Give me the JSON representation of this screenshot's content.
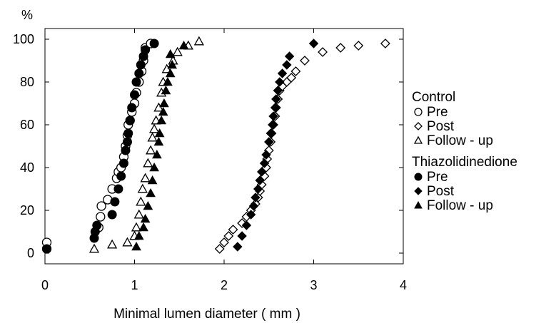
{
  "chart_data": {
    "type": "scatter",
    "title": "",
    "xlabel": "Minimal lumen diameter ( mm )",
    "ylabel": "%",
    "xlim": [
      0,
      4
    ],
    "ylim": [
      -5,
      105
    ],
    "x_ticks": [
      0,
      1,
      2,
      3,
      4
    ],
    "x_tick_labels": [
      "0",
      "1",
      "2",
      "3",
      "4"
    ],
    "y_ticks": [
      0,
      20,
      40,
      60,
      80,
      100
    ],
    "y_tick_labels": [
      "0",
      "20",
      "40",
      "60",
      "80",
      "100"
    ],
    "grid": false,
    "legend_position": "right",
    "legend_groups": [
      {
        "title": "Control",
        "entries": [
          {
            "label": "Pre",
            "marker": "circle-open"
          },
          {
            "label": "Post",
            "marker": "diamond-open"
          },
          {
            "label": "Follow - up",
            "marker": "triangle-open"
          }
        ]
      },
      {
        "title": "Thiazolidinedione",
        "entries": [
          {
            "label": "Pre",
            "marker": "circle-filled"
          },
          {
            "label": "Post",
            "marker": "diamond-filled"
          },
          {
            "label": "Follow - up",
            "marker": "triangle-filled"
          }
        ]
      }
    ],
    "series": [
      {
        "group": "Control",
        "name": "Pre",
        "marker": "circle-open",
        "points": [
          [
            0.02,
            2
          ],
          [
            0.02,
            5
          ],
          [
            0.6,
            12
          ],
          [
            0.62,
            17
          ],
          [
            0.63,
            22
          ],
          [
            0.7,
            25
          ],
          [
            0.75,
            30
          ],
          [
            0.8,
            35
          ],
          [
            0.82,
            38
          ],
          [
            0.85,
            40
          ],
          [
            0.88,
            45
          ],
          [
            0.9,
            50
          ],
          [
            0.92,
            55
          ],
          [
            0.93,
            60
          ],
          [
            0.95,
            62
          ],
          [
            0.97,
            66
          ],
          [
            1.0,
            70
          ],
          [
            1.02,
            75
          ],
          [
            1.05,
            80
          ],
          [
            1.08,
            85
          ],
          [
            1.1,
            90
          ],
          [
            1.12,
            96
          ],
          [
            1.18,
            98
          ]
        ]
      },
      {
        "group": "Control",
        "name": "Post",
        "marker": "diamond-open",
        "points": [
          [
            1.95,
            2
          ],
          [
            2.0,
            5
          ],
          [
            2.05,
            8
          ],
          [
            2.1,
            11
          ],
          [
            2.2,
            14
          ],
          [
            2.25,
            17
          ],
          [
            2.3,
            20
          ],
          [
            2.35,
            23
          ],
          [
            2.38,
            26
          ],
          [
            2.4,
            29
          ],
          [
            2.42,
            32
          ],
          [
            2.45,
            36
          ],
          [
            2.47,
            40
          ],
          [
            2.48,
            44
          ],
          [
            2.5,
            48
          ],
          [
            2.52,
            52
          ],
          [
            2.53,
            56
          ],
          [
            2.55,
            60
          ],
          [
            2.57,
            64
          ],
          [
            2.58,
            68
          ],
          [
            2.6,
            72
          ],
          [
            2.62,
            76
          ],
          [
            2.65,
            78
          ],
          [
            2.7,
            80
          ],
          [
            2.75,
            82
          ],
          [
            2.8,
            85
          ],
          [
            2.9,
            90
          ],
          [
            3.1,
            94
          ],
          [
            3.3,
            96
          ],
          [
            3.5,
            97
          ],
          [
            3.8,
            98
          ]
        ]
      },
      {
        "group": "Control",
        "name": "Follow - up",
        "marker": "triangle-open",
        "points": [
          [
            0.55,
            2
          ],
          [
            0.75,
            4
          ],
          [
            0.92,
            5
          ],
          [
            1.0,
            8
          ],
          [
            1.02,
            12
          ],
          [
            1.05,
            18
          ],
          [
            1.07,
            24
          ],
          [
            1.09,
            30
          ],
          [
            1.12,
            35
          ],
          [
            1.15,
            42
          ],
          [
            1.18,
            48
          ],
          [
            1.2,
            54
          ],
          [
            1.22,
            58
          ],
          [
            1.24,
            62
          ],
          [
            1.27,
            68
          ],
          [
            1.3,
            75
          ],
          [
            1.32,
            80
          ],
          [
            1.36,
            86
          ],
          [
            1.43,
            90
          ],
          [
            1.48,
            94
          ],
          [
            1.6,
            97
          ],
          [
            1.72,
            99
          ]
        ]
      },
      {
        "group": "Thiazolidinedione",
        "name": "Pre",
        "marker": "circle-filled",
        "points": [
          [
            0.02,
            2
          ],
          [
            0.55,
            7
          ],
          [
            0.56,
            10
          ],
          [
            0.58,
            13
          ],
          [
            0.75,
            18
          ],
          [
            0.78,
            24
          ],
          [
            0.82,
            30
          ],
          [
            0.85,
            36
          ],
          [
            0.88,
            42
          ],
          [
            0.9,
            48
          ],
          [
            0.92,
            52
          ],
          [
            0.93,
            56
          ],
          [
            0.95,
            62
          ],
          [
            0.97,
            68
          ],
          [
            1.0,
            74
          ],
          [
            1.02,
            80
          ],
          [
            1.05,
            84
          ],
          [
            1.07,
            88
          ],
          [
            1.1,
            92
          ],
          [
            1.12,
            95
          ],
          [
            1.22,
            98
          ]
        ]
      },
      {
        "group": "Thiazolidinedione",
        "name": "Post",
        "marker": "diamond-filled",
        "points": [
          [
            2.15,
            3
          ],
          [
            2.2,
            8
          ],
          [
            2.25,
            13
          ],
          [
            2.3,
            18
          ],
          [
            2.33,
            22
          ],
          [
            2.35,
            26
          ],
          [
            2.38,
            30
          ],
          [
            2.4,
            34
          ],
          [
            2.42,
            38
          ],
          [
            2.45,
            42
          ],
          [
            2.47,
            46
          ],
          [
            2.5,
            52
          ],
          [
            2.52,
            56
          ],
          [
            2.54,
            60
          ],
          [
            2.55,
            64
          ],
          [
            2.57,
            68
          ],
          [
            2.58,
            72
          ],
          [
            2.6,
            76
          ],
          [
            2.62,
            80
          ],
          [
            2.65,
            84
          ],
          [
            2.7,
            88
          ],
          [
            2.73,
            92
          ],
          [
            3.0,
            98
          ]
        ]
      },
      {
        "group": "Thiazolidinedione",
        "name": "Follow - up",
        "marker": "triangle-filled",
        "points": [
          [
            1.02,
            3
          ],
          [
            1.05,
            8
          ],
          [
            1.1,
            12
          ],
          [
            1.12,
            16
          ],
          [
            1.15,
            22
          ],
          [
            1.18,
            28
          ],
          [
            1.2,
            34
          ],
          [
            1.22,
            40
          ],
          [
            1.25,
            46
          ],
          [
            1.27,
            52
          ],
          [
            1.28,
            56
          ],
          [
            1.3,
            62
          ],
          [
            1.32,
            66
          ],
          [
            1.33,
            70
          ],
          [
            1.35,
            76
          ],
          [
            1.37,
            80
          ],
          [
            1.4,
            84
          ],
          [
            1.42,
            88
          ],
          [
            1.4,
            93
          ],
          [
            1.55,
            97
          ]
        ]
      }
    ]
  }
}
